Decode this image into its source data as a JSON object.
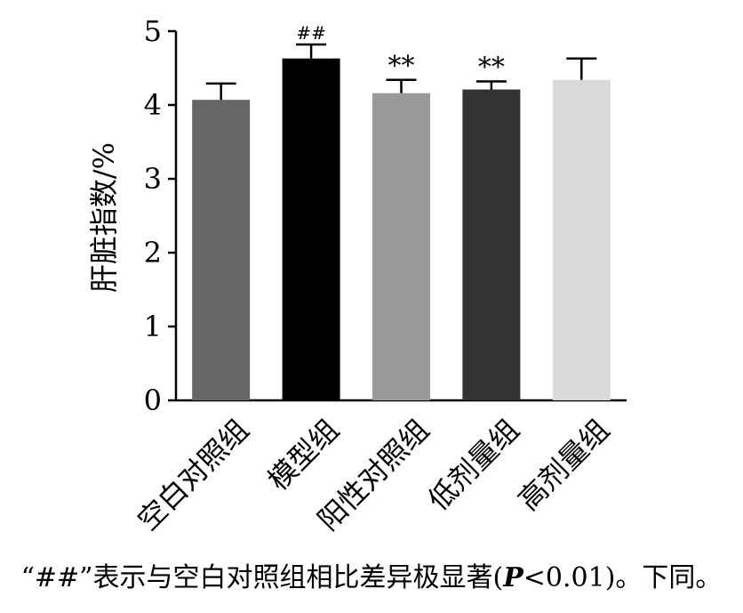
{
  "chart_data": {
    "type": "bar",
    "categories": [
      "空白对照组",
      "模型组",
      "阳性对照组",
      "低剂量组",
      "高剂量组"
    ],
    "values": [
      4.07,
      4.63,
      4.16,
      4.21,
      4.34
    ],
    "errors": [
      0.22,
      0.19,
      0.18,
      0.11,
      0.29
    ],
    "annotations": [
      "",
      "##",
      "**",
      "**",
      ""
    ],
    "colors": [
      "#666666",
      "#000000",
      "#999999",
      "#333333",
      "#d9d9d9"
    ],
    "ylabel": "肝脏指数/%",
    "xlabel": "",
    "ylim": [
      0,
      5
    ],
    "yticks": [
      "0",
      "1",
      "2",
      "3",
      "4",
      "5"
    ],
    "grid": false
  },
  "note": {
    "prefix": "“##”表示与空白对照组相比差异极显著(",
    "p_symbol": "P",
    "suffix": "<0.01)。下同。"
  }
}
